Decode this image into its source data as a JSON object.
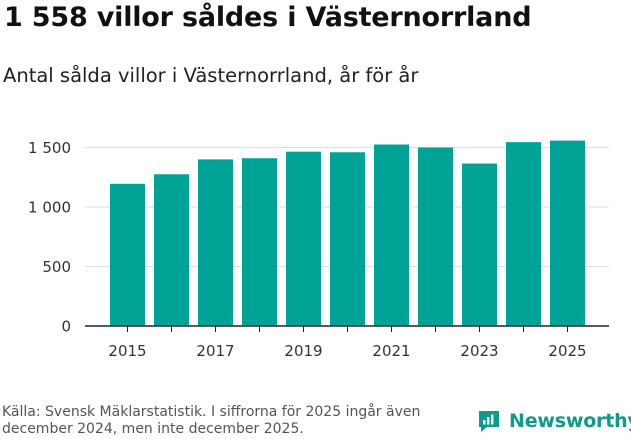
{
  "title": "1 558 villor såldes i Västernorrland",
  "subtitle": "Antal sålda villor i Västernorrland, år för år",
  "source": "Källa: Svensk Mäklarstatistik. I siffrorna för 2025 ingår även december 2024, men inte december 2025.",
  "brand": {
    "name": "Newsworthy",
    "icon": "newsworthy-logo-icon"
  },
  "colors": {
    "bar": "#00a396",
    "grid": "#dddddd",
    "axis": "#222222",
    "brand": "#0e9b8b"
  },
  "chart_data": {
    "type": "bar",
    "title": "1 558 villor såldes i Västernorrland",
    "subtitle": "Antal sålda villor i Västernorrland, år för år",
    "xlabel": "",
    "ylabel": "",
    "categories": [
      "2015",
      "2016",
      "2017",
      "2018",
      "2019",
      "2020",
      "2021",
      "2022",
      "2023",
      "2024",
      "2025"
    ],
    "values": [
      1195,
      1275,
      1400,
      1410,
      1465,
      1460,
      1525,
      1500,
      1365,
      1545,
      1558
    ],
    "ylim": [
      0,
      1600
    ],
    "yticks": [
      0,
      500,
      1000,
      1500
    ],
    "ytick_labels": [
      "0",
      "500",
      "1 000",
      "1 500"
    ],
    "xtick_labels": [
      "2015",
      "2017",
      "2019",
      "2021",
      "2023",
      "2025"
    ],
    "grid": true,
    "legend": "none"
  }
}
